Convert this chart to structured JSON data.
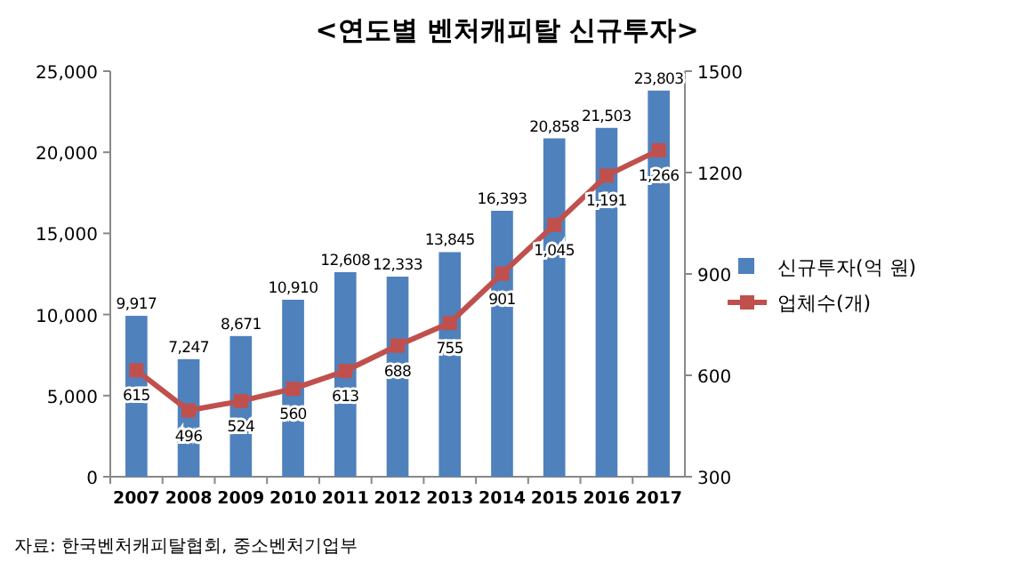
{
  "chart_data": {
    "type": "bar",
    "title": "<연도별 벤처캐피탈 신규투자>",
    "categories": [
      "2007",
      "2008",
      "2009",
      "2010",
      "2011",
      "2012",
      "2013",
      "2014",
      "2015",
      "2016",
      "2017"
    ],
    "series": [
      {
        "name": "신규투자(억 원)",
        "color": "#4f81bd",
        "values": [
          9917,
          7247,
          8671,
          10910,
          12608,
          12333,
          13845,
          16393,
          20858,
          21503,
          23803
        ],
        "value_labels": [
          "9,917",
          "7,247",
          "8,671",
          "10,910",
          "12,608",
          "12,333",
          "13,845",
          "16,393",
          "20,858",
          "21,503",
          "23,803"
        ]
      },
      {
        "name": "업체수(개)",
        "type": "line",
        "axis": "y2",
        "color": "#c0504d",
        "marker": "square",
        "values": [
          615,
          496,
          524,
          560,
          613,
          688,
          755,
          901,
          1045,
          1191,
          1266
        ],
        "value_labels": [
          "615",
          "496",
          "524",
          "560",
          "613",
          "688",
          "755",
          "901",
          "1,045",
          "1,191",
          "1,266"
        ]
      }
    ],
    "ylim": [
      0,
      25000
    ],
    "yticks": [
      {
        "value": 0,
        "label": "0"
      },
      {
        "value": 5000,
        "label": "5,000"
      },
      {
        "value": 10000,
        "label": "10,000"
      },
      {
        "value": 15000,
        "label": "15,000"
      },
      {
        "value": 20000,
        "label": "20,000"
      },
      {
        "value": 25000,
        "label": "25,000"
      }
    ],
    "y2lim": [
      300,
      1500
    ],
    "y2ticks": [
      300,
      600,
      900,
      {
        "value": 1200,
        "label": "1200"
      },
      {
        "value": 1500,
        "label": "1500"
      }
    ],
    "legend": "right",
    "grid": false,
    "annotations": [
      "자료: 한국벤처캐피탈협회, 중소벤처기업부"
    ]
  }
}
